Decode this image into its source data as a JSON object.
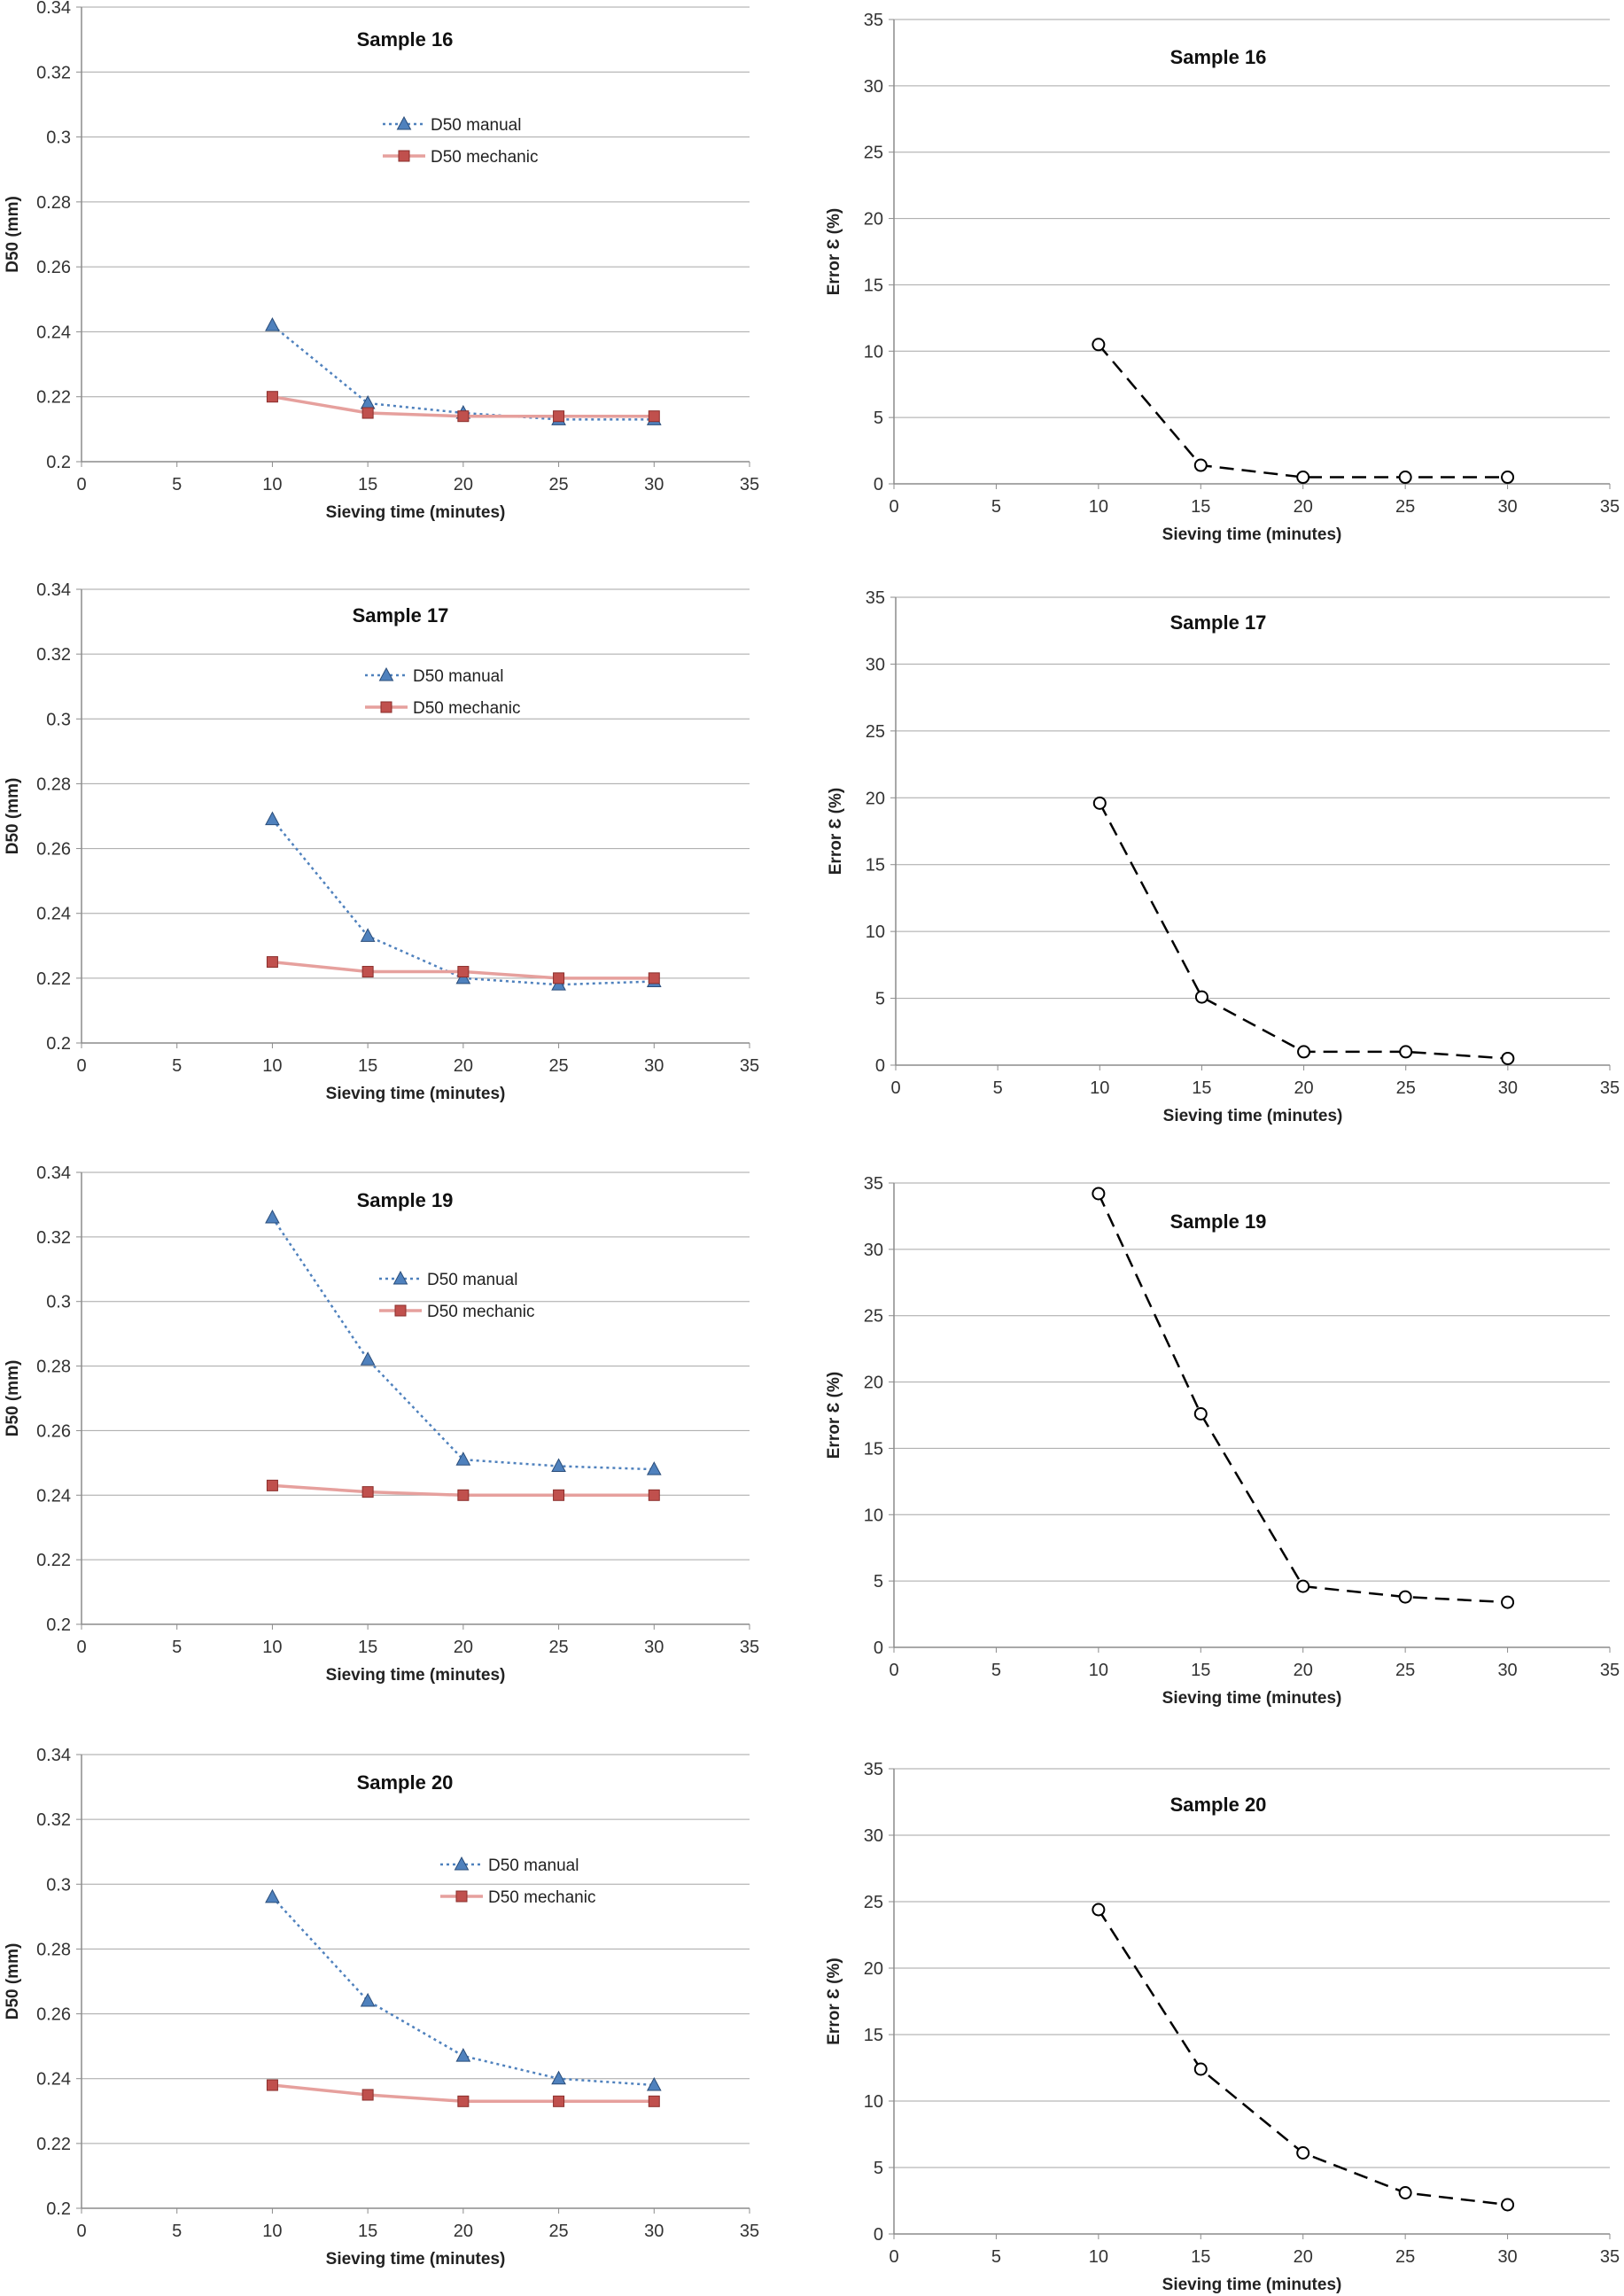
{
  "chart_data": [
    {
      "type": "line",
      "title": "Sample 16",
      "xlabel": "Sieving time (minutes)",
      "ylabel": "D50 (mm)",
      "xlim": [
        0,
        35
      ],
      "ylim": [
        0.2,
        0.34
      ],
      "xticks": [
        "0",
        "5",
        "10",
        "15",
        "20",
        "25",
        "30",
        "35"
      ],
      "yticks": [
        "0.2",
        "0.22",
        "0.24",
        "0.26",
        "0.28",
        "0.3",
        "0.32",
        "0.34"
      ],
      "legend": "top-center",
      "series": [
        {
          "name": "D50 manual",
          "x": [
            10,
            15,
            20,
            25,
            30
          ],
          "values": [
            0.242,
            0.218,
            0.215,
            0.213,
            0.213
          ],
          "color": "#4f81bd",
          "marker": "triangle",
          "line": "dotted"
        },
        {
          "name": "D50 mechanic",
          "x": [
            10,
            15,
            20,
            25,
            30
          ],
          "values": [
            0.22,
            0.215,
            0.214,
            0.214,
            0.214
          ],
          "color": "#c0504d",
          "marker": "square",
          "line": "solid"
        }
      ]
    },
    {
      "type": "line",
      "title": "Sample 16",
      "xlabel": "Sieving time (minutes)",
      "ylabel": "Error Ɛ (%)",
      "xlim": [
        0,
        35
      ],
      "ylim": [
        0,
        35
      ],
      "xticks": [
        "0",
        "5",
        "10",
        "15",
        "20",
        "25",
        "30",
        "35"
      ],
      "yticks": [
        "0",
        "5",
        "10",
        "15",
        "20",
        "25",
        "30",
        "35"
      ],
      "series": [
        {
          "name": "Error",
          "x": [
            10,
            15,
            20,
            25,
            30
          ],
          "values": [
            10.5,
            1.4,
            0.5,
            0.5,
            0.5
          ],
          "color": "#000000",
          "marker": "circle",
          "line": "dashed"
        }
      ]
    },
    {
      "type": "line",
      "title": "Sample 17",
      "xlabel": "Sieving time (minutes)",
      "ylabel": "D50 (mm)",
      "xlim": [
        0,
        35
      ],
      "ylim": [
        0.2,
        0.34
      ],
      "xticks": [
        "0",
        "5",
        "10",
        "15",
        "20",
        "25",
        "30",
        "35"
      ],
      "yticks": [
        "0.2",
        "0.22",
        "0.24",
        "0.26",
        "0.28",
        "0.3",
        "0.32",
        "0.34"
      ],
      "legend": "top-center",
      "series": [
        {
          "name": "D50 manual",
          "x": [
            10,
            15,
            20,
            25,
            30
          ],
          "values": [
            0.269,
            0.233,
            0.22,
            0.218,
            0.219
          ],
          "color": "#4f81bd",
          "marker": "triangle",
          "line": "dotted"
        },
        {
          "name": "D50 mechanic",
          "x": [
            10,
            15,
            20,
            25,
            30
          ],
          "values": [
            0.225,
            0.222,
            0.222,
            0.22,
            0.22
          ],
          "color": "#c0504d",
          "marker": "square",
          "line": "solid"
        }
      ]
    },
    {
      "type": "line",
      "title": "Sample 17",
      "xlabel": "Sieving time (minutes)",
      "ylabel": "Error Ɛ (%)",
      "xlim": [
        0,
        35
      ],
      "ylim": [
        0,
        35
      ],
      "xticks": [
        "0",
        "5",
        "10",
        "15",
        "20",
        "25",
        "30",
        "35"
      ],
      "yticks": [
        "0",
        "5",
        "10",
        "15",
        "20",
        "25",
        "30",
        "35"
      ],
      "series": [
        {
          "name": "Error",
          "x": [
            10,
            15,
            20,
            25,
            30
          ],
          "values": [
            19.6,
            5.1,
            1.0,
            1.0,
            0.5
          ],
          "color": "#000000",
          "marker": "circle",
          "line": "dashed"
        }
      ]
    },
    {
      "type": "line",
      "title": "Sample 19",
      "xlabel": "Sieving time (minutes)",
      "ylabel": "D50 (mm)",
      "xlim": [
        0,
        35
      ],
      "ylim": [
        0.2,
        0.34
      ],
      "xticks": [
        "0",
        "5",
        "10",
        "15",
        "20",
        "25",
        "30",
        "35"
      ],
      "yticks": [
        "0.2",
        "0.22",
        "0.24",
        "0.26",
        "0.28",
        "0.3",
        "0.32",
        "0.34"
      ],
      "legend": "top-center",
      "series": [
        {
          "name": "D50 manual",
          "x": [
            10,
            15,
            20,
            25,
            30
          ],
          "values": [
            0.326,
            0.282,
            0.251,
            0.249,
            0.248
          ],
          "color": "#4f81bd",
          "marker": "triangle",
          "line": "dotted"
        },
        {
          "name": "D50 mechanic",
          "x": [
            10,
            15,
            20,
            25,
            30
          ],
          "values": [
            0.243,
            0.241,
            0.24,
            0.24,
            0.24
          ],
          "color": "#c0504d",
          "marker": "square",
          "line": "solid"
        }
      ]
    },
    {
      "type": "line",
      "title": "Sample 19",
      "xlabel": "Sieving time (minutes)",
      "ylabel": "Error Ɛ (%)",
      "xlim": [
        0,
        35
      ],
      "ylim": [
        0,
        35
      ],
      "xticks": [
        "0",
        "5",
        "10",
        "15",
        "20",
        "25",
        "30",
        "35"
      ],
      "yticks": [
        "0",
        "5",
        "10",
        "15",
        "20",
        "25",
        "30",
        "35"
      ],
      "series": [
        {
          "name": "Error",
          "x": [
            10,
            15,
            20,
            25,
            30
          ],
          "values": [
            34.2,
            17.6,
            4.6,
            3.8,
            3.4
          ],
          "color": "#000000",
          "marker": "circle",
          "line": "dashed"
        }
      ]
    },
    {
      "type": "line",
      "title": "Sample 20",
      "xlabel": "Sieving time (minutes)",
      "ylabel": "D50 (mm)",
      "xlim": [
        0,
        35
      ],
      "ylim": [
        0.2,
        0.34
      ],
      "xticks": [
        "0",
        "5",
        "10",
        "15",
        "20",
        "25",
        "30",
        "35"
      ],
      "yticks": [
        "0.2",
        "0.22",
        "0.24",
        "0.26",
        "0.28",
        "0.3",
        "0.32",
        "0.34"
      ],
      "legend": "top-right",
      "series": [
        {
          "name": "D50 manual",
          "x": [
            10,
            15,
            20,
            25,
            30
          ],
          "values": [
            0.296,
            0.264,
            0.247,
            0.24,
            0.238
          ],
          "color": "#4f81bd",
          "marker": "triangle",
          "line": "dotted"
        },
        {
          "name": "D50 mechanic",
          "x": [
            10,
            15,
            20,
            25,
            30
          ],
          "values": [
            0.238,
            0.235,
            0.233,
            0.233,
            0.233
          ],
          "color": "#c0504d",
          "marker": "square",
          "line": "solid"
        }
      ]
    },
    {
      "type": "line",
      "title": "Sample 20",
      "xlabel": "Sieving time (minutes)",
      "ylabel": "Error Ɛ (%)",
      "xlim": [
        0,
        35
      ],
      "ylim": [
        0,
        35
      ],
      "xticks": [
        "0",
        "5",
        "10",
        "15",
        "20",
        "25",
        "30",
        "35"
      ],
      "yticks": [
        "0",
        "5",
        "10",
        "15",
        "20",
        "25",
        "30",
        "35"
      ],
      "series": [
        {
          "name": "Error",
          "x": [
            10,
            15,
            20,
            25,
            30
          ],
          "values": [
            24.4,
            12.4,
            6.1,
            3.1,
            2.2
          ],
          "color": "#000000",
          "marker": "circle",
          "line": "dashed"
        }
      ]
    }
  ]
}
